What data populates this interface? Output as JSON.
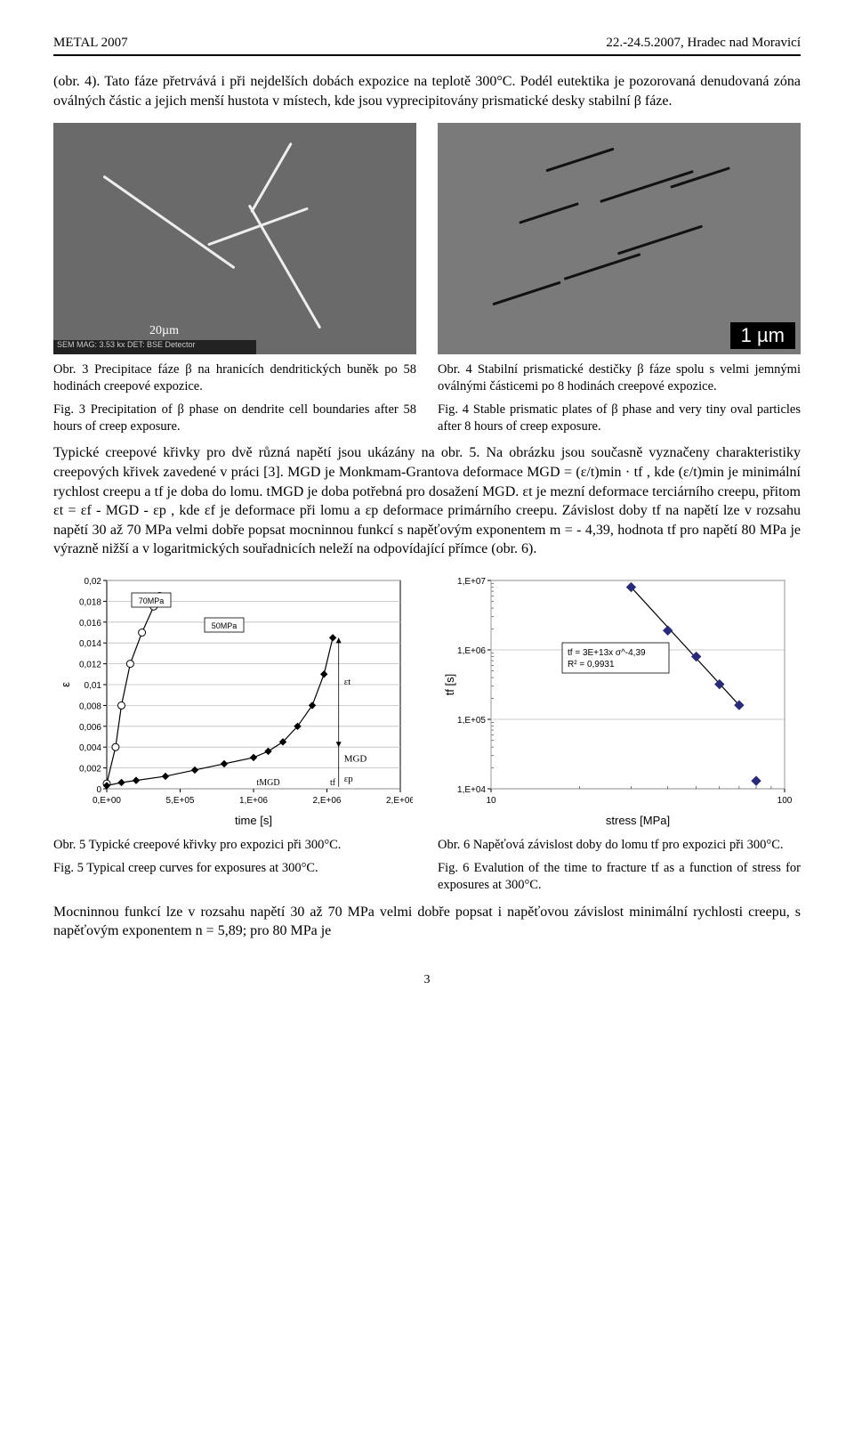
{
  "header": {
    "left": "METAL 2007",
    "right": "22.-24.5.2007, Hradec nad Moravicí"
  },
  "para1": "(obr. 4). Tato fáze přetrvává i při nejdelších dobách expozice na teplotě 300°C. Podél eutektika je pozorovaná denudovaná zóna oválných částic a jejich menší hustota v místech, kde jsou vyprecipitovány prismatické desky stabilní β fáze.",
  "fig3": {
    "cz": "Obr. 3 Precipitace fáze β na hranicích dendritických buněk po 58 hodinách creepové expozice.",
    "en": "Fig. 3 Precipitation of β phase on dendrite cell boundaries after 58 hours of creep exposure.",
    "scale": "20µm",
    "inset": "SEM MAG: 3.53 kx    DET: BSE Detector"
  },
  "fig4": {
    "cz": "Obr. 4 Stabilní prismatické destičky β fáze spolu s velmi jemnými oválnými částicemi po 8 hodinách creepové expozice.",
    "en": "Fig. 4 Stable prismatic plates of β phase and very tiny oval particles after 8 hours of creep exposure.",
    "scale": "1 µm"
  },
  "para2": "Typické creepové křivky pro dvě různá napětí jsou ukázány na obr. 5. Na obrázku jsou současně vyznačeny charakteristiky creepových křivek zavedené v práci [3]. MGD je Monkmam-Grantova deformace MGD = (ε/t)min · tf , kde (ε/t)min je minimální rychlost creepu a tf je doba do lomu. tMGD je doba potřebná pro dosažení MGD. εt je mezní deformace terciárního creepu, přitom εt = εf - MGD - εp , kde εf je deformace při lomu a εp deformace primárního creepu. Závislost doby tf na napětí lze v rozsahu napětí 30 až 70 MPa velmi dobře popsat mocninnou funkcí s napěťovým exponentem m = - 4,39, hodnota tf pro napětí 80 MPa je výrazně nižší a v logaritmických souřadnicích neleží na odpovídající přímce (obr. 6).",
  "chart5": {
    "type": "scatter-line",
    "xlabel": "time [s]",
    "ylabel": "ε",
    "xticks": [
      "0,E+00",
      "5,E+05",
      "1,E+06",
      "2,E+06",
      "2,E+06"
    ],
    "yticks": [
      "0",
      "0,002",
      "0,004",
      "0,006",
      "0,008",
      "0,01",
      "0,012",
      "0,014",
      "0,016",
      "0,018",
      "0,02"
    ],
    "series70_label": "70MPa",
    "series50_label": "50MPa",
    "ann_et": "εt",
    "ann_mgd": "MGD",
    "ann_ep": "εp",
    "ann_tmgd": "tMGD",
    "ann_tf": "tf",
    "series70": [
      [
        0,
        0.0005
      ],
      [
        0.03,
        0.004
      ],
      [
        0.05,
        0.008
      ],
      [
        0.08,
        0.012
      ],
      [
        0.12,
        0.015
      ],
      [
        0.16,
        0.0175
      ],
      [
        0.18,
        0.0185
      ]
    ],
    "series50": [
      [
        0,
        0.0003
      ],
      [
        0.05,
        0.0006
      ],
      [
        0.1,
        0.0008
      ],
      [
        0.2,
        0.0012
      ],
      [
        0.3,
        0.0018
      ],
      [
        0.4,
        0.0024
      ],
      [
        0.5,
        0.003
      ],
      [
        0.55,
        0.0036
      ],
      [
        0.6,
        0.0045
      ],
      [
        0.65,
        0.006
      ],
      [
        0.7,
        0.008
      ],
      [
        0.74,
        0.011
      ],
      [
        0.77,
        0.0145
      ]
    ],
    "grid_color": "#bdbdbd",
    "marker_fill_70": "#ffffff",
    "marker_fill_50": "#000000",
    "line_color": "#000000",
    "bg": "#ffffff"
  },
  "chart6": {
    "type": "scatter-line-loglog",
    "xlabel": "stress [MPa]",
    "ylabel": "tf [s]",
    "xticks": [
      "10",
      "100"
    ],
    "yticks": [
      "1,E+04",
      "1,E+05",
      "1,E+06",
      "1,E+07"
    ],
    "fit_label": "tf = 3E+13x σ^-4,39",
    "r2_label": "R² = 0,9931",
    "points": [
      [
        30,
        8000000.0
      ],
      [
        40,
        1900000.0
      ],
      [
        50,
        800000.0
      ],
      [
        60,
        320000.0
      ],
      [
        70,
        160000.0
      ],
      [
        80,
        13000.0
      ]
    ],
    "xlim": [
      10,
      100
    ],
    "ylim": [
      10000.0,
      10000000.0
    ],
    "marker_color": "#2a2a7a",
    "line_color": "#000000",
    "grid_color": "#bdbdbd",
    "bg": "#ffffff"
  },
  "fig5": {
    "cz": "Obr. 5 Typické creepové křivky pro expozici při 300°C.",
    "en": "Fig. 5 Typical creep curves for exposures at 300°C."
  },
  "fig6": {
    "cz": "Obr. 6 Napěťová závislost doby do lomu tf pro expozici při 300°C.",
    "en": "Fig. 6 Evalution of the time to fracture tf as a function of stress for exposures at 300°C."
  },
  "para3": "Mocninnou funkcí lze v rozsahu napětí 30 až 70 MPa velmi dobře popsat i napěťovou závislost minimální rychlosti creepu, s napěťovým exponentem n = 5,89; pro 80 MPa je",
  "page_num": "3"
}
